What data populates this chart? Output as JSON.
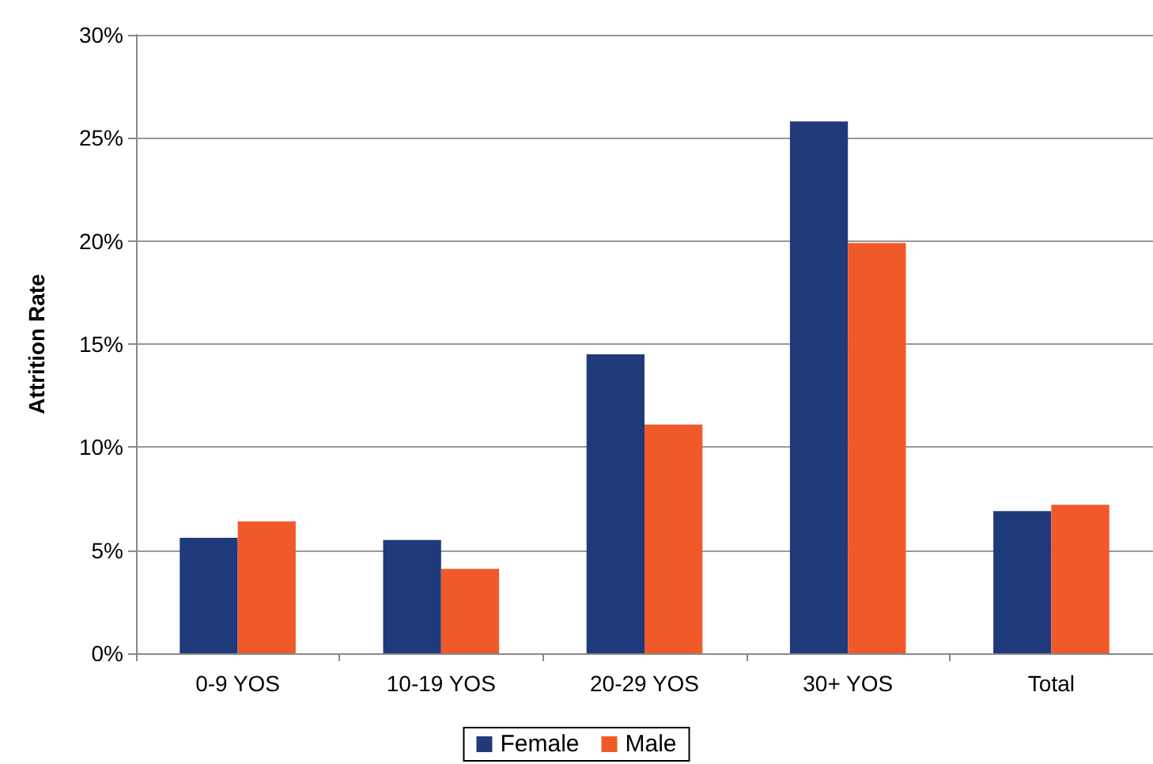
{
  "chart_data": {
    "type": "bar",
    "ylabel": "Attrition Rate",
    "categories": [
      "0-9 YOS",
      "10-19 YOS",
      "20-29 YOS",
      "30+ YOS",
      "Total"
    ],
    "series": [
      {
        "name": "Female",
        "color": "#1f3a7a",
        "values": [
          5.6,
          5.5,
          14.5,
          25.8,
          6.9
        ]
      },
      {
        "name": "Male",
        "color": "#f05a28",
        "values": [
          6.4,
          4.1,
          11.1,
          19.9,
          7.2
        ]
      }
    ],
    "ylim": [
      0,
      30
    ],
    "yticks": [
      {
        "value": 0,
        "label": "0%"
      },
      {
        "value": 5,
        "label": "5%"
      },
      {
        "value": 10,
        "label": "10%"
      },
      {
        "value": 15,
        "label": "15%"
      },
      {
        "value": 20,
        "label": "20%"
      },
      {
        "value": 25,
        "label": "25%"
      },
      {
        "value": 30,
        "label": "30%"
      }
    ],
    "grid": "y",
    "legend": "bottom"
  }
}
